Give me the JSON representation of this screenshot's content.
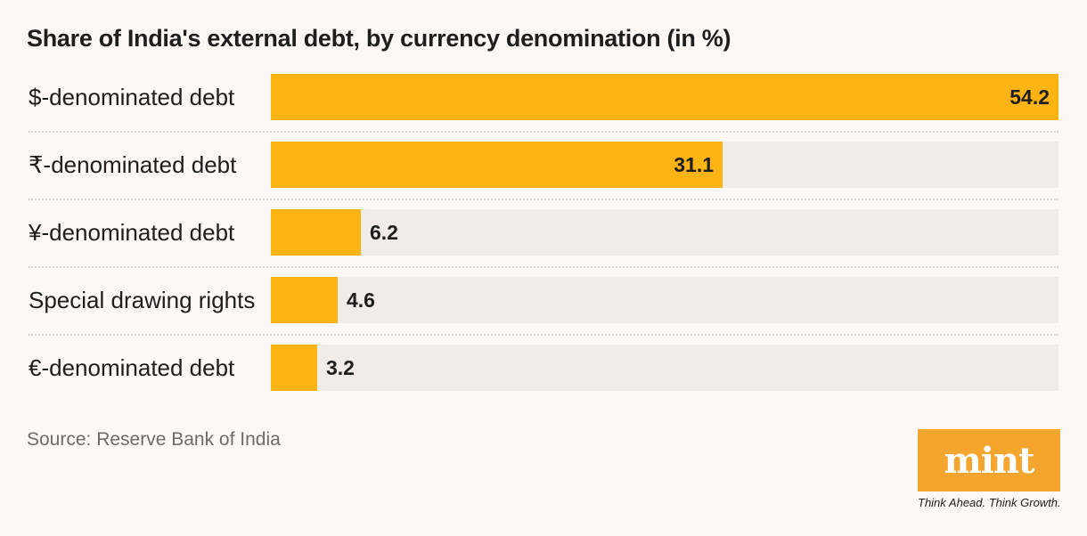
{
  "chart_data": {
    "type": "bar",
    "orientation": "horizontal",
    "title": "Share of India's external debt, by currency denomination (in %)",
    "categories": [
      "$-denominated debt",
      "₹-denominated debt",
      "¥-denominated debt",
      "Special drawing rights",
      "€-denominated debt"
    ],
    "values": [
      54.2,
      31.1,
      6.2,
      4.6,
      3.2
    ],
    "value_labels": [
      "54.2",
      "31.1",
      "6.2",
      "4.6",
      "3.2"
    ],
    "xlim": [
      0,
      54.2
    ],
    "xlabel": "",
    "ylabel": "",
    "grid": false,
    "legend": "none"
  },
  "colors": {
    "bar": "#fcb314",
    "track": "#f1ecea",
    "background": "#fdf7f6",
    "logo": "#f4a52d"
  },
  "source": "Source: Reserve Bank of India",
  "logo": {
    "name": "mint",
    "tagline": "Think Ahead. Think Growth."
  }
}
